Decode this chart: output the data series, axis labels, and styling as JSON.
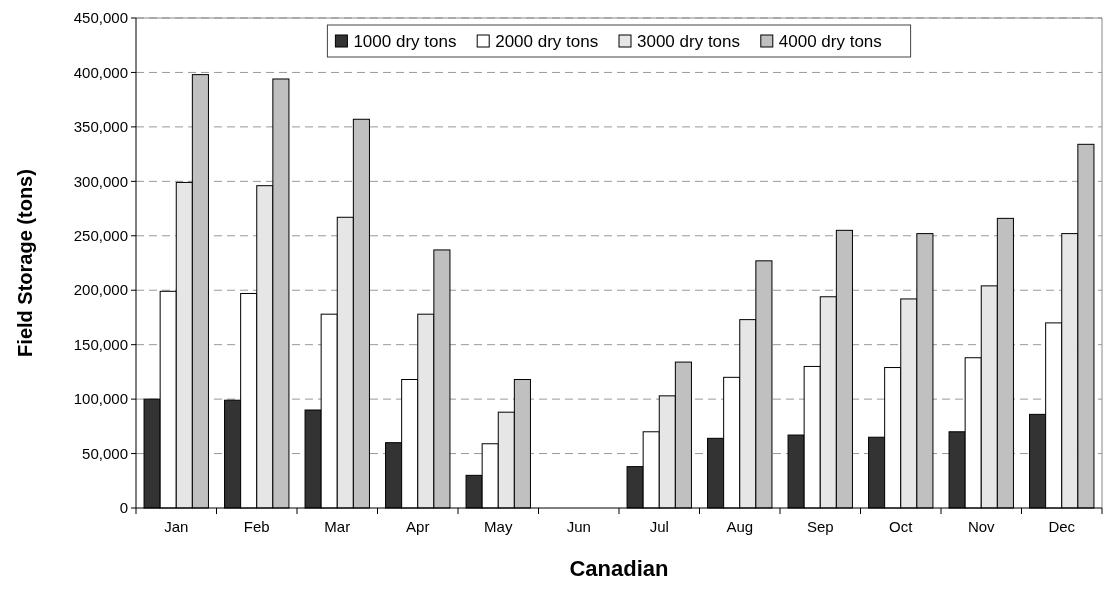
{
  "chart_data": {
    "type": "bar",
    "xlabel": "Canadian",
    "ylabel": "Field Storage (tons)",
    "categories": [
      "Jan",
      "Feb",
      "Mar",
      "Apr",
      "May",
      "Jun",
      "Jul",
      "Aug",
      "Sep",
      "Oct",
      "Nov",
      "Dec"
    ],
    "series": [
      {
        "name": "1000 dry tons",
        "color": "#333333",
        "values": [
          100000,
          99000,
          90000,
          60000,
          30000,
          0,
          38000,
          64000,
          67000,
          65000,
          70000,
          86000
        ]
      },
      {
        "name": "2000 dry tons",
        "color": "#ffffff",
        "values": [
          199000,
          197000,
          178000,
          118000,
          59000,
          0,
          70000,
          120000,
          130000,
          129000,
          138000,
          170000
        ]
      },
      {
        "name": "3000 dry tons",
        "color": "#e6e6e6",
        "values": [
          299000,
          296000,
          267000,
          178000,
          88000,
          0,
          103000,
          173000,
          194000,
          192000,
          204000,
          252000
        ]
      },
      {
        "name": "4000 dry tons",
        "color": "#c0c0c0",
        "values": [
          398000,
          394000,
          357000,
          237000,
          118000,
          0,
          134000,
          227000,
          255000,
          252000,
          266000,
          334000
        ]
      }
    ],
    "ylim": [
      0,
      450000
    ],
    "yticks": [
      {
        "value": 0,
        "label": "0"
      },
      {
        "value": 50000,
        "label": "50,000"
      },
      {
        "value": 100000,
        "label": "100,000"
      },
      {
        "value": 150000,
        "label": "150,000"
      },
      {
        "value": 200000,
        "label": "200,000"
      },
      {
        "value": 250000,
        "label": "250,000"
      },
      {
        "value": 300000,
        "label": "300,000"
      },
      {
        "value": 350000,
        "label": "350,000"
      },
      {
        "value": 400000,
        "label": "400,000"
      },
      {
        "value": 450000,
        "label": "450,000"
      }
    ],
    "grid": "y",
    "legend": "top"
  }
}
